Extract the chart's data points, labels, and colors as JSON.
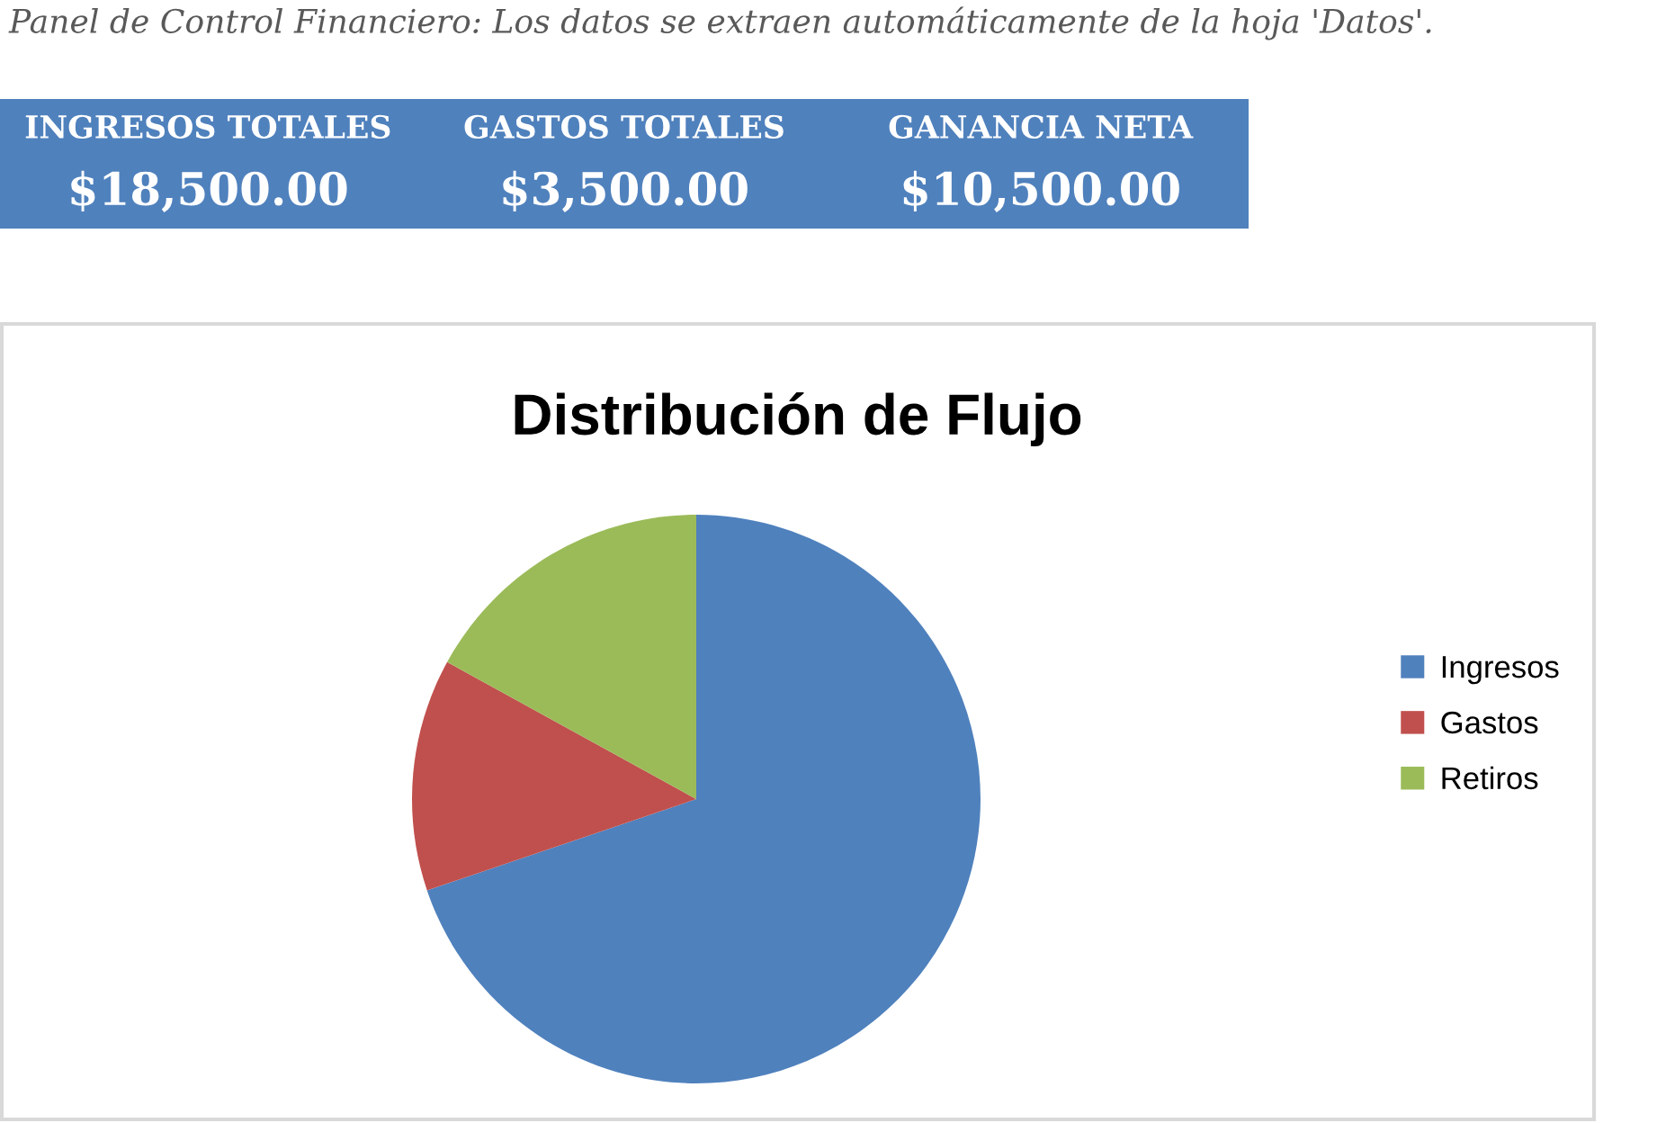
{
  "chart_data": [
    {
      "type": "other",
      "title": "Panel de Control Financiero: Los datos se extraen automáticamente de la hoja 'Datos'.",
      "annotations": [
        "INGRESOS TOTALES",
        "GASTOS TOTALES",
        "GANANCIA NETA",
        "$18,500.00",
        "$3,500.00",
        "$10,500.00"
      ],
      "color": "#4f81bd"
    },
    {
      "type": "pie",
      "title": "Distribución de Flujo",
      "categories": [
        "Ingresos",
        "Gastos",
        "Retiros"
      ],
      "values": [
        69.8,
        13.2,
        17.0
      ],
      "colors": [
        "#4f81bd",
        "#c0504d",
        "#9bbb59"
      ],
      "legend": "right"
    }
  ]
}
